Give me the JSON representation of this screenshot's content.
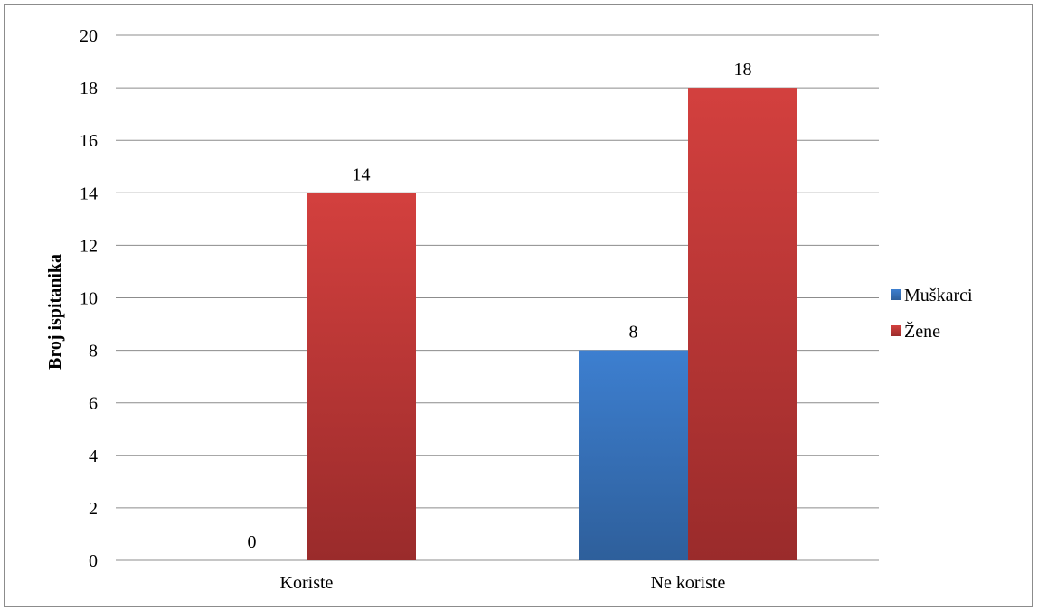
{
  "chart_data": {
    "type": "bar",
    "categories": [
      "Koriste",
      "Ne koriste"
    ],
    "series": [
      {
        "name": "Muškarci",
        "values": [
          0,
          8
        ],
        "color": "#3a78c3"
      },
      {
        "name": "Žene",
        "values": [
          14,
          18
        ],
        "color": "#c0393b"
      }
    ],
    "ylabel": "Broj ispitanika",
    "xlabel": "",
    "ylim": [
      0,
      20
    ],
    "yticks": [
      0,
      2,
      4,
      6,
      8,
      10,
      12,
      14,
      16,
      18,
      20
    ],
    "grid": true,
    "legend": "right",
    "data_labels": true
  }
}
